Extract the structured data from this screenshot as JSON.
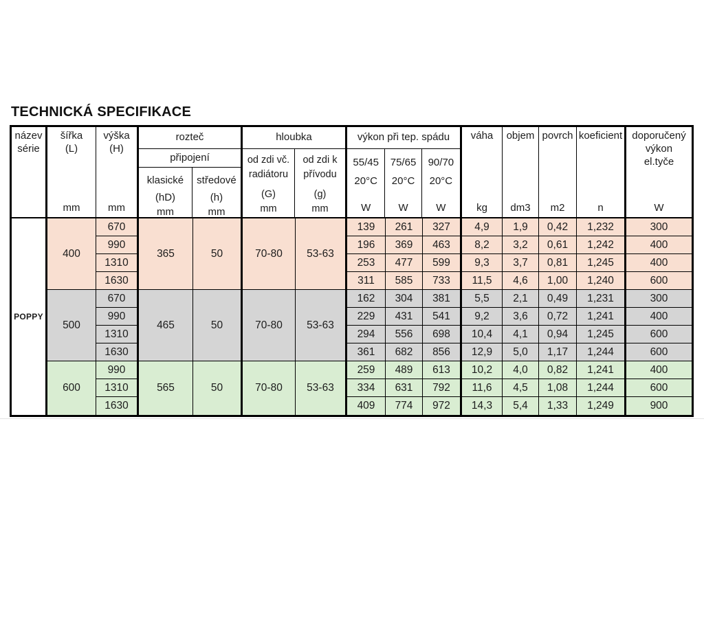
{
  "page_title": "TECHNICKÁ SPECIFIKACE",
  "table": {
    "series_name": "POPPY",
    "header": {
      "col_nazev": {
        "l1": "název",
        "l2": "série"
      },
      "col_sirka": {
        "l1": "šířka",
        "l2": "(L)",
        "unit": "mm"
      },
      "col_vyska": {
        "l1": "výška",
        "l2": "(H)",
        "unit": "mm"
      },
      "grp_roztec": {
        "title": "rozteč",
        "sub": "připojení",
        "cols": [
          {
            "l1": "klasické",
            "l2": "(hD)",
            "unit": "mm"
          },
          {
            "l1": "středové",
            "l2": "(h)",
            "unit": "mm"
          }
        ]
      },
      "grp_hloubka": {
        "title": "hloubka",
        "cols": [
          {
            "l1": "od zdi  vč.",
            "l2": "radiátoru",
            "l3": "(G)",
            "unit": "mm"
          },
          {
            "l1": "od zdi  k",
            "l2": "přívodu",
            "l3": "(g)",
            "unit": "mm"
          }
        ]
      },
      "grp_vykon": {
        "title": "výkon při tep.  spádu",
        "cols": [
          {
            "l1": "55/45",
            "l2": "20°C",
            "unit": "W"
          },
          {
            "l1": "75/65",
            "l2": "20°C",
            "unit": "W"
          },
          {
            "l1": "90/70",
            "l2": "20°C",
            "unit": "W"
          }
        ]
      },
      "col_vaha": {
        "l1": "váha",
        "unit": "kg"
      },
      "col_objem": {
        "l1": "objem",
        "unit": "dm3"
      },
      "col_povrch": {
        "l1": "povrch",
        "unit": "m2"
      },
      "col_koeficient": {
        "l1": "koeficient",
        "unit": "n"
      },
      "col_doporuceny": {
        "l1": "doporučený",
        "l2": "výkon",
        "l3": "el.tyče",
        "unit": "W"
      }
    },
    "groups": [
      {
        "bg": "#f9dfd1",
        "sirka": "400",
        "roztec_klasicke": "365",
        "roztec_stredove": "50",
        "hloubka_od_zdi_radiator": "70-80",
        "hloubka_od_zdi_privod": "53-63",
        "rows": [
          {
            "vyska": "670",
            "vals": [
              "139",
              "261",
              "327",
              "4,9",
              "1,9",
              "0,42",
              "1,232",
              "300"
            ]
          },
          {
            "vyska": "990",
            "vals": [
              "196",
              "369",
              "463",
              "8,2",
              "3,2",
              "0,61",
              "1,242",
              "400"
            ]
          },
          {
            "vyska": "1310",
            "vals": [
              "253",
              "477",
              "599",
              "9,3",
              "3,7",
              "0,81",
              "1,245",
              "400"
            ]
          },
          {
            "vyska": "1630",
            "vals": [
              "311",
              "585",
              "733",
              "11,5",
              "4,6",
              "1,00",
              "1,240",
              "600"
            ]
          }
        ]
      },
      {
        "bg": "#d5d5d5",
        "sirka": "500",
        "roztec_klasicke": "465",
        "roztec_stredove": "50",
        "hloubka_od_zdi_radiator": "70-80",
        "hloubka_od_zdi_privod": "53-63",
        "rows": [
          {
            "vyska": "670",
            "vals": [
              "162",
              "304",
              "381",
              "5,5",
              "2,1",
              "0,49",
              "1,231",
              "300"
            ]
          },
          {
            "vyska": "990",
            "vals": [
              "229",
              "431",
              "541",
              "9,2",
              "3,6",
              "0,72",
              "1,241",
              "400"
            ]
          },
          {
            "vyska": "1310",
            "vals": [
              "294",
              "556",
              "698",
              "10,4",
              "4,1",
              "0,94",
              "1,245",
              "600"
            ]
          },
          {
            "vyska": "1630",
            "vals": [
              "361",
              "682",
              "856",
              "12,9",
              "5,0",
              "1,17",
              "1,244",
              "600"
            ]
          }
        ]
      },
      {
        "bg": "#d9edd2",
        "sirka": "600",
        "roztec_klasicke": "565",
        "roztec_stredove": "50",
        "hloubka_od_zdi_radiator": "70-80",
        "hloubka_od_zdi_privod": "53-63",
        "rows": [
          {
            "vyska": "990",
            "vals": [
              "259",
              "489",
              "613",
              "10,2",
              "4,0",
              "0,82",
              "1,241",
              "400"
            ]
          },
          {
            "vyska": "1310",
            "vals": [
              "334",
              "631",
              "792",
              "11,6",
              "4,5",
              "1,08",
              "1,244",
              "600"
            ]
          },
          {
            "vyska": "1630",
            "vals": [
              "409",
              "774",
              "972",
              "14,3",
              "5,4",
              "1,33",
              "1,249",
              "900"
            ]
          }
        ]
      }
    ]
  }
}
